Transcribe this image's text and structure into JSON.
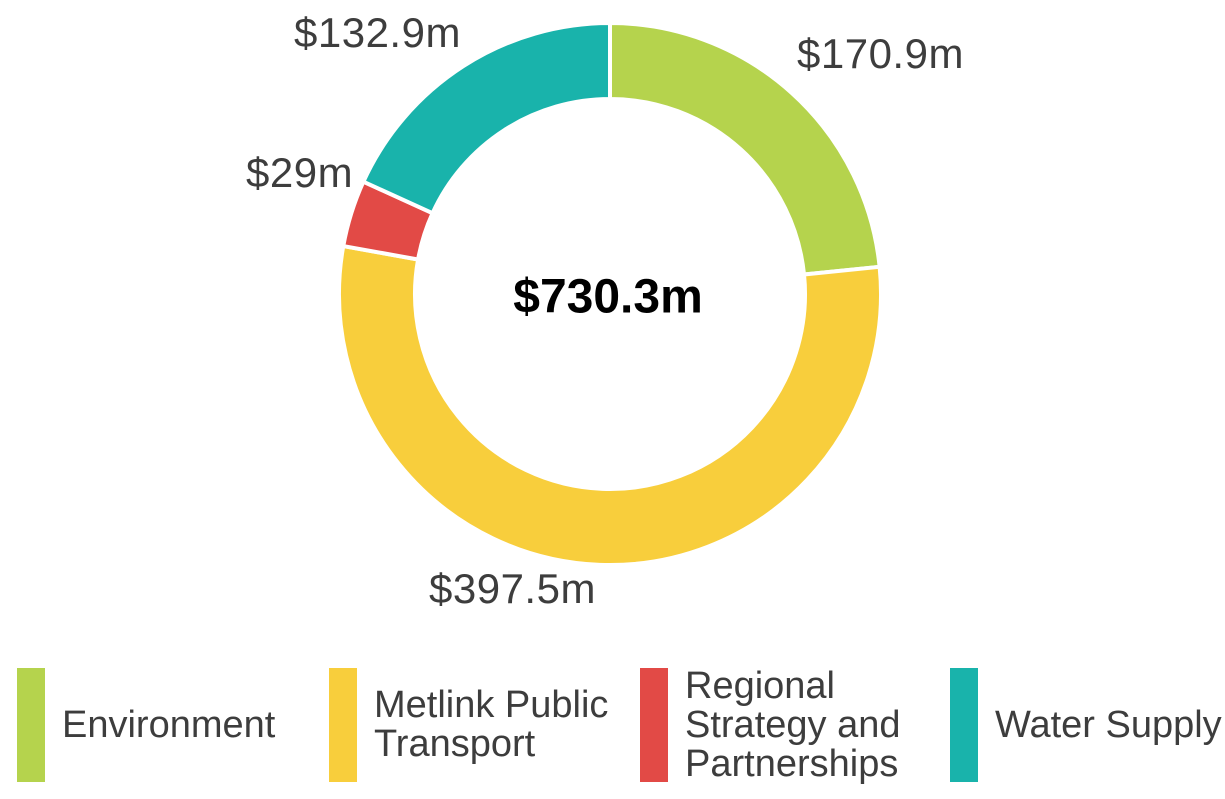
{
  "chart_data": {
    "type": "pie",
    "subtype": "donut",
    "center_label": "$730.3m",
    "total": 730.3,
    "unit": "millions NZD",
    "direction": "clockwise",
    "start_angle_deg": 0,
    "legend_position": "bottom",
    "background_color": "#ffffff",
    "label_text_color": "#3d3d3d",
    "center_text_color": "#000000",
    "slice_gap_color": "#ffffff",
    "slices": [
      {
        "id": "environment",
        "name": "Environment",
        "value": 170.9,
        "label": "$170.9m",
        "color": "#b5d34d"
      },
      {
        "id": "metlink-public-transport",
        "name": "Metlink Public Transport",
        "value": 397.5,
        "label": "$397.5m",
        "color": "#f8ce3c"
      },
      {
        "id": "regional-strategy-and-partnerships",
        "name": "Regional Strategy and Partnerships",
        "value": 29,
        "label": "$29m",
        "color": "#e24a46"
      },
      {
        "id": "water-supply",
        "name": "Water Supply",
        "value": 132.9,
        "label": "$132.9m",
        "color": "#19b3ab"
      }
    ]
  }
}
